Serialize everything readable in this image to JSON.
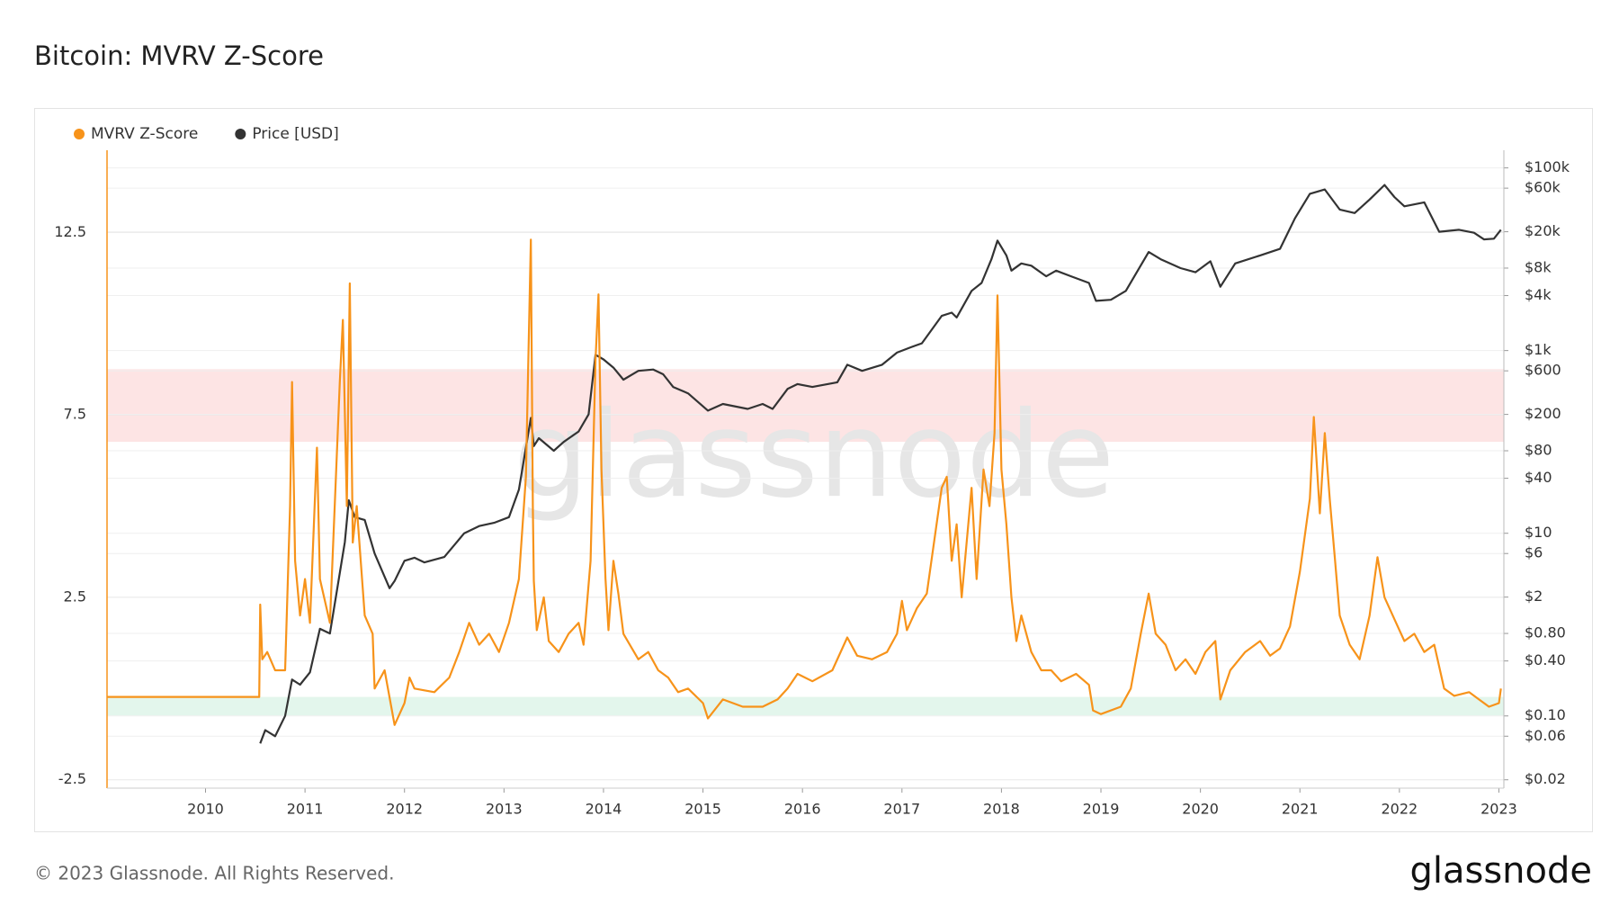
{
  "chart_data": {
    "type": "line",
    "title": "Bitcoin: MVRV Z-Score",
    "watermark": "glassnode",
    "xlim": [
      2009.01,
      2023.05
    ],
    "xticks": [
      2010,
      2011,
      2012,
      2013,
      2014,
      2015,
      2016,
      2017,
      2018,
      2019,
      2020,
      2021,
      2022,
      2023
    ],
    "ylim": [
      -2.73,
      14.75
    ],
    "yticks": [
      -2.5,
      2.5,
      7.5,
      12.5
    ],
    "y2lim": [
      0.0162,
      156000
    ],
    "y2log": true,
    "y2ticks": [
      {
        "value": 100000,
        "label": "$100k"
      },
      {
        "value": 60000,
        "label": "$60k"
      },
      {
        "value": 20000,
        "label": "$20k"
      },
      {
        "value": 8000,
        "label": "$8k"
      },
      {
        "value": 4000,
        "label": "$4k"
      },
      {
        "value": 1000,
        "label": "$1k"
      },
      {
        "value": 600,
        "label": "$600"
      },
      {
        "value": 200,
        "label": "$200"
      },
      {
        "value": 80,
        "label": "$80"
      },
      {
        "value": 40,
        "label": "$40"
      },
      {
        "value": 10,
        "label": "$10"
      },
      {
        "value": 6,
        "label": "$6"
      },
      {
        "value": 2,
        "label": "$2"
      },
      {
        "value": 0.8,
        "label": "$0.80"
      },
      {
        "value": 0.4,
        "label": "$0.40"
      },
      {
        "value": 0.1,
        "label": "$0.10"
      },
      {
        "value": 0.06,
        "label": "$0.06"
      },
      {
        "value": 0.02,
        "label": "$0.02"
      }
    ],
    "grid": true,
    "bands": [
      {
        "from": 6.76,
        "to": 8.75,
        "color": "#fde4e4"
      },
      {
        "from": -0.74,
        "to": -0.23,
        "color": "#e3f6ec"
      }
    ],
    "legend": "top-left",
    "series": [
      {
        "name": "MVRV Z-Score",
        "color": "#f7931a",
        "x": [
          2009.01,
          2010.54,
          2010.55,
          2010.57,
          2010.62,
          2010.7,
          2010.8,
          2010.85,
          2010.87,
          2010.9,
          2010.95,
          2011.0,
          2011.05,
          2011.12,
          2011.15,
          2011.25,
          2011.35,
          2011.38,
          2011.42,
          2011.45,
          2011.48,
          2011.52,
          2011.6,
          2011.68,
          2011.7,
          2011.8,
          2011.9,
          2012.0,
          2012.05,
          2012.1,
          2012.3,
          2012.45,
          2012.55,
          2012.65,
          2012.75,
          2012.85,
          2012.95,
          2013.05,
          2013.15,
          2013.22,
          2013.27,
          2013.29,
          2013.3,
          2013.33,
          2013.4,
          2013.45,
          2013.55,
          2013.65,
          2013.75,
          2013.8,
          2013.87,
          2013.92,
          2013.95,
          2013.98,
          2014.02,
          2014.05,
          2014.1,
          2014.15,
          2014.2,
          2014.35,
          2014.45,
          2014.55,
          2014.65,
          2014.75,
          2014.85,
          2015.0,
          2015.05,
          2015.2,
          2015.4,
          2015.6,
          2015.75,
          2015.85,
          2015.95,
          2016.1,
          2016.3,
          2016.45,
          2016.55,
          2016.7,
          2016.85,
          2016.95,
          2017.0,
          2017.05,
          2017.15,
          2017.25,
          2017.4,
          2017.45,
          2017.5,
          2017.55,
          2017.6,
          2017.7,
          2017.75,
          2017.82,
          2017.88,
          2017.93,
          2017.96,
          2018.0,
          2018.05,
          2018.1,
          2018.15,
          2018.2,
          2018.3,
          2018.4,
          2018.5,
          2018.6,
          2018.75,
          2018.88,
          2018.92,
          2019.0,
          2019.2,
          2019.3,
          2019.4,
          2019.48,
          2019.55,
          2019.65,
          2019.75,
          2019.85,
          2019.95,
          2020.05,
          2020.15,
          2020.2,
          2020.3,
          2020.45,
          2020.6,
          2020.7,
          2020.8,
          2020.9,
          2021.0,
          2021.1,
          2021.14,
          2021.2,
          2021.25,
          2021.3,
          2021.35,
          2021.4,
          2021.5,
          2021.6,
          2021.7,
          2021.78,
          2021.85,
          2021.95,
          2022.05,
          2022.15,
          2022.25,
          2022.35,
          2022.45,
          2022.55,
          2022.7,
          2022.8,
          2022.9,
          2023.0,
          2023.02
        ],
        "values": [
          -0.23,
          -0.23,
          2.3,
          0.8,
          1.0,
          0.5,
          0.5,
          5.0,
          8.4,
          3.5,
          2.0,
          3.0,
          1.8,
          6.6,
          3.0,
          1.8,
          8.4,
          10.1,
          5.0,
          11.1,
          4.0,
          5.0,
          2.0,
          1.5,
          0.0,
          0.5,
          -1.0,
          -0.4,
          0.3,
          0.0,
          -0.1,
          0.3,
          1.0,
          1.8,
          1.2,
          1.5,
          1.0,
          1.8,
          3.0,
          5.8,
          12.3,
          5.0,
          2.95,
          1.6,
          2.5,
          1.3,
          1.0,
          1.5,
          1.8,
          1.2,
          3.5,
          9.0,
          10.8,
          6.0,
          3.0,
          1.6,
          3.5,
          2.6,
          1.5,
          0.8,
          1.0,
          0.5,
          0.3,
          -0.1,
          0.0,
          -0.4,
          -0.82,
          -0.3,
          -0.5,
          -0.5,
          -0.3,
          0.0,
          0.4,
          0.2,
          0.5,
          1.4,
          0.9,
          0.8,
          1.0,
          1.5,
          2.4,
          1.6,
          2.2,
          2.6,
          5.5,
          5.8,
          3.5,
          4.5,
          2.5,
          5.5,
          3.0,
          6.0,
          5.0,
          7.0,
          10.77,
          6.0,
          4.5,
          2.5,
          1.3,
          2.0,
          1.0,
          0.5,
          0.5,
          0.2,
          0.4,
          0.1,
          -0.6,
          -0.7,
          -0.5,
          0.0,
          1.5,
          2.6,
          1.5,
          1.2,
          0.5,
          0.8,
          0.4,
          1.0,
          1.3,
          -0.3,
          0.5,
          1.0,
          1.3,
          0.9,
          1.1,
          1.7,
          3.2,
          5.2,
          7.44,
          4.8,
          7.0,
          5.2,
          3.6,
          2.0,
          1.2,
          0.8,
          2.0,
          3.6,
          2.5,
          1.9,
          1.3,
          1.5,
          1.0,
          1.2,
          0.0,
          -0.2,
          -0.1,
          -0.3,
          -0.5,
          -0.4,
          0.0
        ]
      },
      {
        "name": "Price [USD]",
        "color": "#333333",
        "axis": "y2",
        "x": [
          2010.55,
          2010.6,
          2010.7,
          2010.8,
          2010.87,
          2010.95,
          2011.05,
          2011.15,
          2011.25,
          2011.4,
          2011.44,
          2011.5,
          2011.6,
          2011.7,
          2011.85,
          2011.9,
          2012.0,
          2012.1,
          2012.2,
          2012.4,
          2012.6,
          2012.75,
          2012.9,
          2013.05,
          2013.15,
          2013.27,
          2013.3,
          2013.35,
          2013.5,
          2013.6,
          2013.75,
          2013.85,
          2013.92,
          2014.0,
          2014.1,
          2014.2,
          2014.35,
          2014.5,
          2014.6,
          2014.7,
          2014.85,
          2015.05,
          2015.2,
          2015.45,
          2015.6,
          2015.7,
          2015.85,
          2015.95,
          2016.1,
          2016.35,
          2016.45,
          2016.6,
          2016.8,
          2016.95,
          2017.1,
          2017.2,
          2017.4,
          2017.5,
          2017.55,
          2017.7,
          2017.8,
          2017.9,
          2017.96,
          2018.05,
          2018.1,
          2018.2,
          2018.3,
          2018.45,
          2018.55,
          2018.7,
          2018.88,
          2018.95,
          2019.1,
          2019.25,
          2019.48,
          2019.6,
          2019.8,
          2019.95,
          2020.1,
          2020.2,
          2020.35,
          2020.6,
          2020.8,
          2020.95,
          2021.1,
          2021.25,
          2021.4,
          2021.55,
          2021.7,
          2021.85,
          2021.95,
          2022.05,
          2022.25,
          2022.4,
          2022.6,
          2022.75,
          2022.85,
          2022.95,
          2023.02
        ],
        "values": [
          0.05,
          0.07,
          0.06,
          0.1,
          0.25,
          0.22,
          0.3,
          0.9,
          0.8,
          8,
          23,
          15,
          14,
          6,
          2.5,
          3,
          5,
          5.4,
          4.8,
          5.5,
          10,
          12,
          13,
          15,
          30,
          183,
          90,
          110,
          80,
          100,
          130,
          200,
          900,
          800,
          650,
          480,
          600,
          620,
          550,
          400,
          340,
          220,
          260,
          230,
          260,
          230,
          380,
          430,
          400,
          450,
          700,
          600,
          700,
          950,
          1100,
          1200,
          2400,
          2600,
          2300,
          4500,
          5500,
          10000,
          16000,
          11000,
          7500,
          9000,
          8500,
          6500,
          7500,
          6500,
          5500,
          3500,
          3600,
          4500,
          12000,
          10000,
          8000,
          7200,
          9500,
          5000,
          9000,
          11000,
          13000,
          28000,
          52000,
          58000,
          35000,
          32000,
          45000,
          65000,
          48000,
          38000,
          42000,
          20000,
          21000,
          19500,
          16500,
          16800,
          21000
        ]
      }
    ]
  },
  "footer": {
    "copyright": "© 2023 Glassnode. All Rights Reserved.",
    "logo": "glassnode"
  }
}
